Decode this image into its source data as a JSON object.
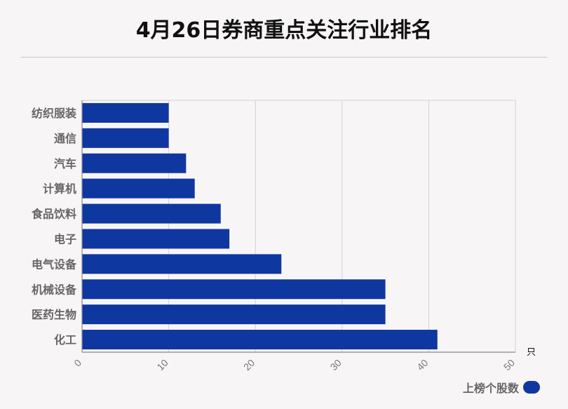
{
  "title": "4月26日券商重点关注行业排名",
  "chart_data": {
    "type": "bar",
    "orientation": "horizontal",
    "categories": [
      "纺织服装",
      "通信",
      "汽车",
      "计算机",
      "食品饮料",
      "电子",
      "电气设备",
      "机械设备",
      "医药生物",
      "化工"
    ],
    "series": [
      {
        "name": "上榜个股数",
        "values": [
          10,
          10,
          12,
          13,
          16,
          17,
          23,
          35,
          35,
          41
        ]
      }
    ],
    "xlim": [
      0,
      50
    ],
    "xticks": [
      0,
      10,
      20,
      30,
      40,
      50
    ],
    "unit": "只",
    "grid": true,
    "legend_position": "bottom-right",
    "colors": {
      "bar": "#0f37a0",
      "grid": "#d2d0d2",
      "axis": "#888888"
    }
  }
}
